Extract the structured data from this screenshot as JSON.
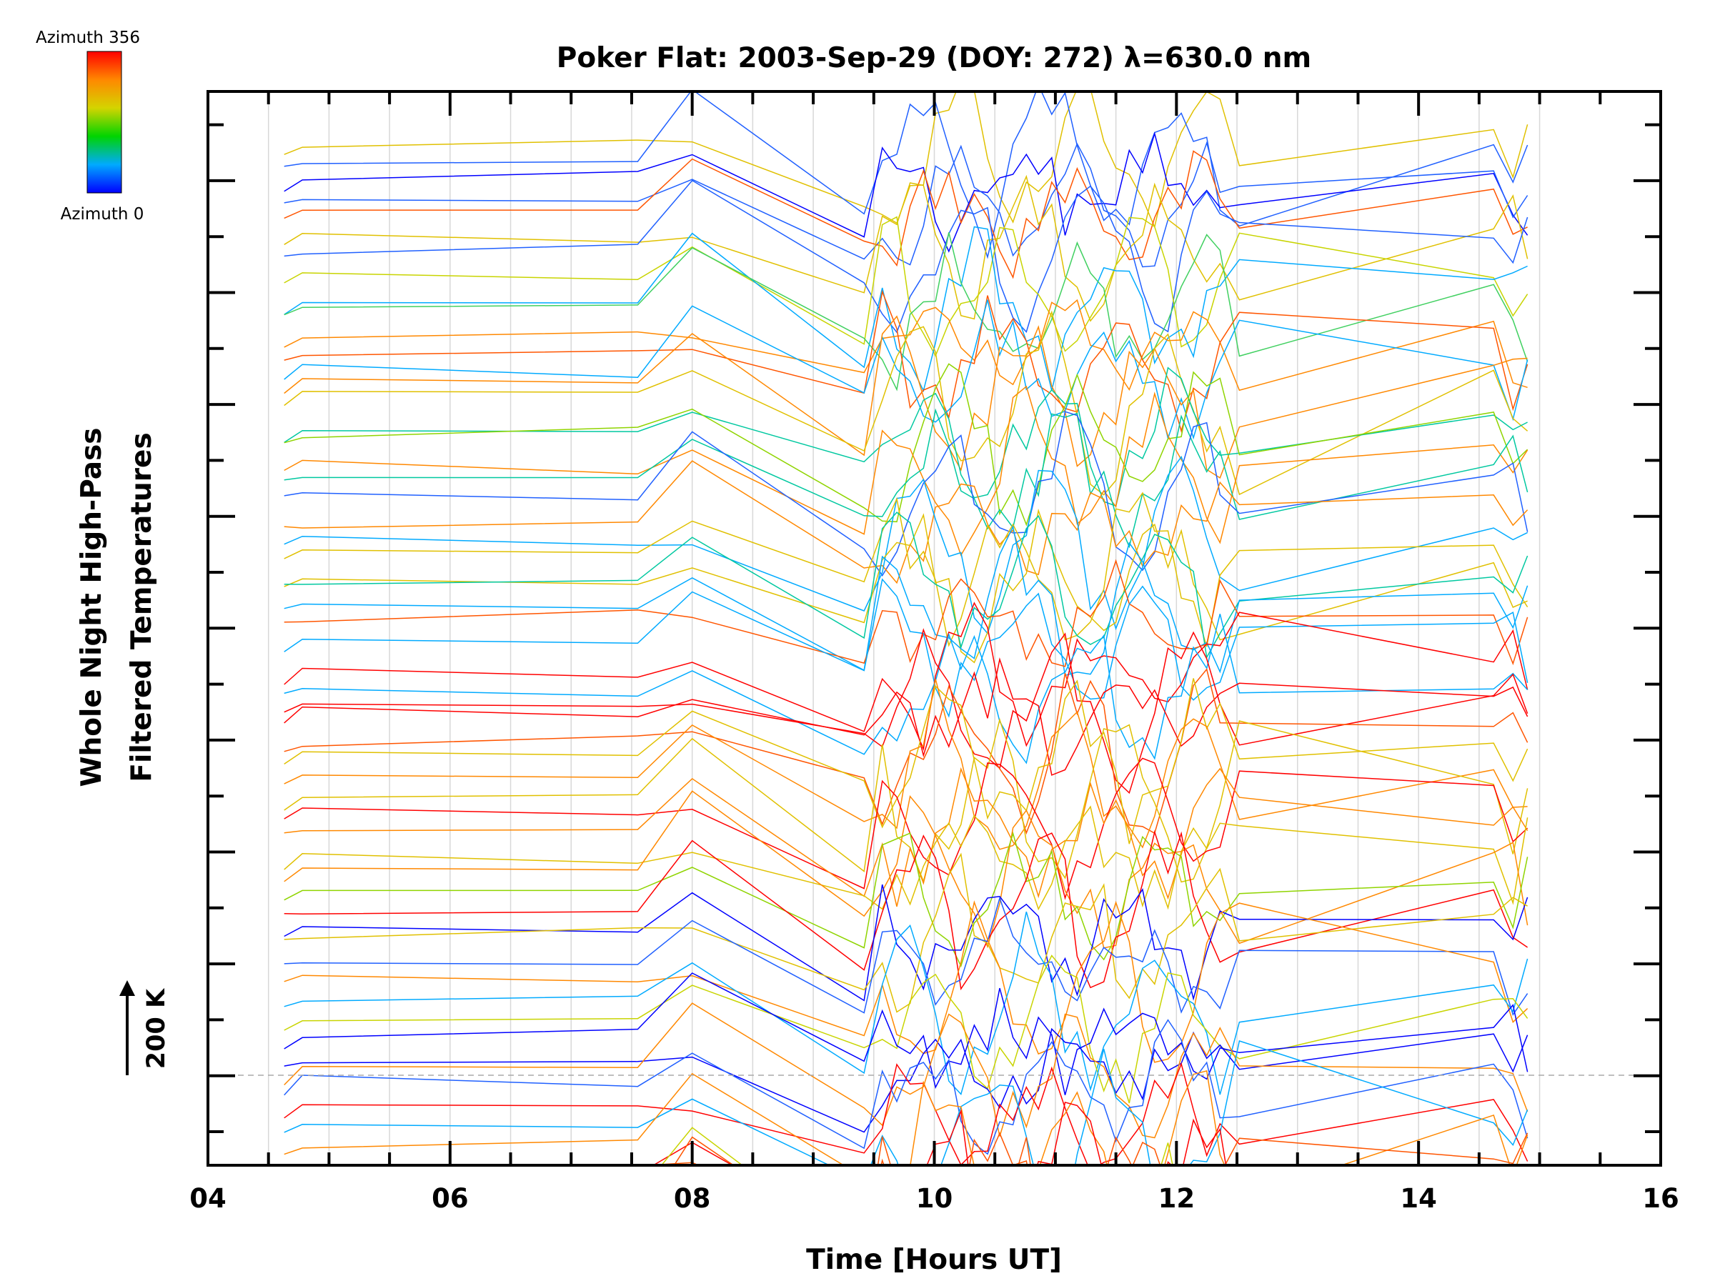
{
  "chart_data": {
    "type": "line",
    "title": "Poker Flat: 2003-Sep-29 (DOY: 272) λ=630.0 nm",
    "xlabel": "Time [Hours UT]",
    "ylabel_line1": "Whole Night High-Pass",
    "ylabel_line2": "Filtered Temperatures",
    "xlim": [
      4,
      16
    ],
    "x_ticks": [
      "04",
      "06",
      "08",
      "10",
      "12",
      "14",
      "16"
    ],
    "x_tick_values": [
      4,
      6,
      8,
      10,
      12,
      14,
      16
    ],
    "scale_label": "200 K",
    "colorbar": {
      "max_label": "Azimuth 356",
      "min_label": "Azimuth 0",
      "colors": [
        "#ff0000",
        "#ff8800",
        "#d4d400",
        "#00d400",
        "#00aaff",
        "#0000ff"
      ]
    },
    "grid": true,
    "sample_times": [
      4.63,
      4.78,
      7.55,
      8.0,
      9.42,
      9.57,
      9.69,
      9.8,
      9.91,
      10.01,
      10.12,
      10.22,
      10.33,
      10.44,
      10.54,
      10.65,
      10.76,
      10.86,
      10.97,
      11.08,
      11.18,
      11.29,
      11.4,
      11.5,
      11.61,
      11.72,
      11.82,
      11.93,
      12.04,
      12.14,
      12.25,
      12.36,
      12.52,
      14.62,
      14.78,
      14.9
    ],
    "n_traces": 60
  }
}
